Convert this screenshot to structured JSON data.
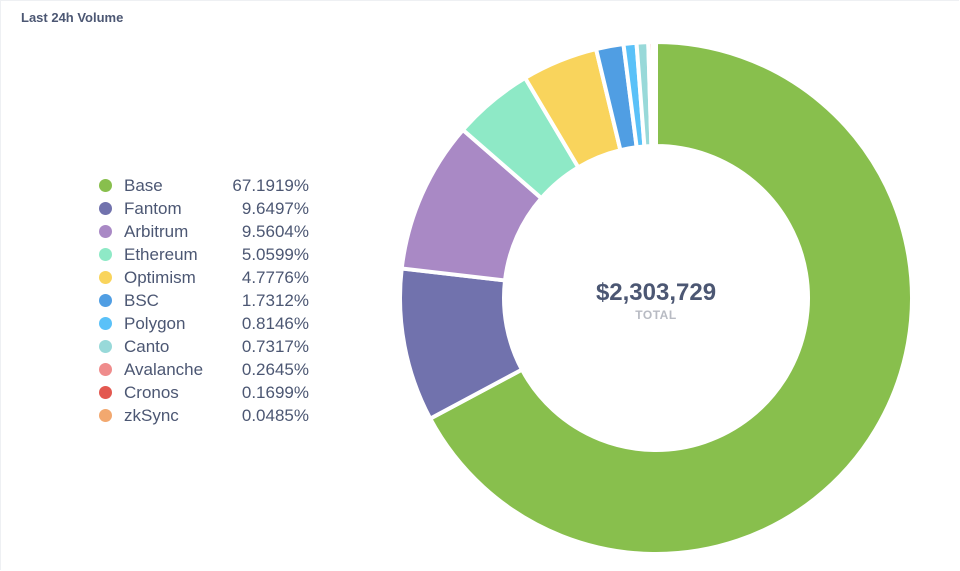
{
  "card": {
    "title": "Last 24h Volume"
  },
  "center": {
    "total": "$2,303,729",
    "total_label": "TOTAL"
  },
  "chart_data": {
    "type": "pie",
    "donut": true,
    "labels": [
      "Base",
      "Fantom",
      "Arbitrum",
      "Ethereum",
      "Optimism",
      "BSC",
      "Polygon",
      "Canto",
      "Avalanche",
      "Cronos",
      "zkSync"
    ],
    "values": [
      67.1919,
      9.6497,
      9.5604,
      5.0599,
      4.7776,
      1.7312,
      0.8146,
      0.7317,
      0.2645,
      0.1699,
      0.0485
    ],
    "value_labels": [
      "67.1919%",
      "9.6497%",
      "9.5604%",
      "5.0599%",
      "4.7776%",
      "1.7312%",
      "0.8146%",
      "0.7317%",
      "0.2645%",
      "0.1699%",
      "0.0485%"
    ],
    "colors": [
      "#88bf4d",
      "#7172ad",
      "#a989c5",
      "#8ee9c6",
      "#f9d45c",
      "#509ee3",
      "#5ac1f8",
      "#98d9d9",
      "#ef8c8c",
      "#e35850",
      "#f2a86f"
    ],
    "legend_position": "left"
  }
}
